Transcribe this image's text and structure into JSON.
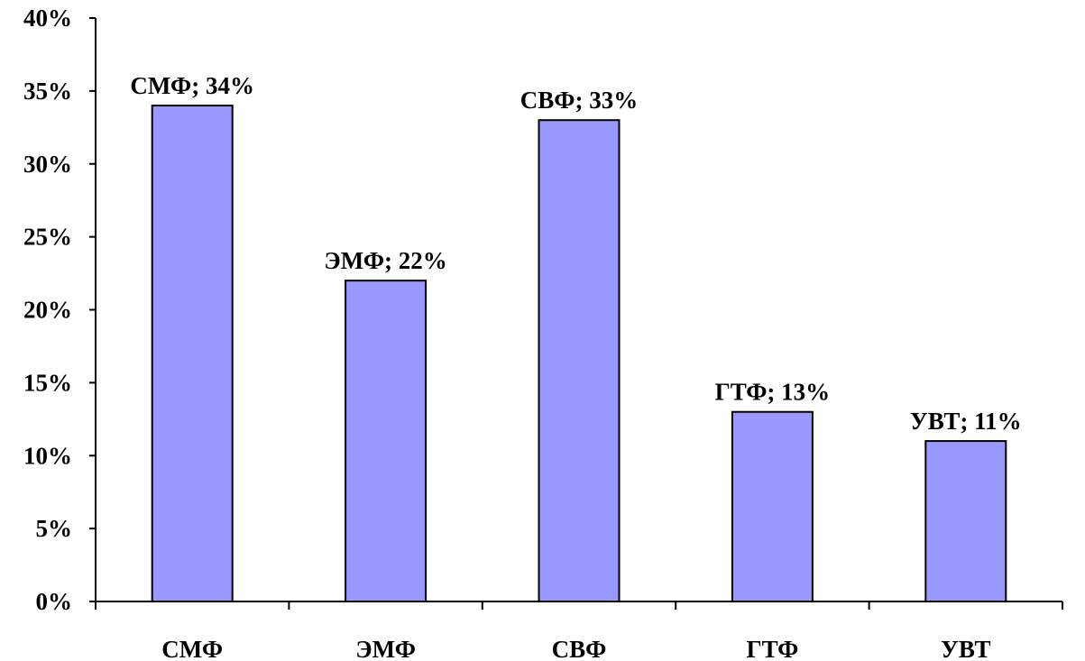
{
  "chart_data": {
    "type": "bar",
    "categories": [
      "СМФ",
      "ЭМФ",
      "СВФ",
      "ГТФ",
      "УВТ"
    ],
    "values": [
      34,
      22,
      33,
      13,
      11
    ],
    "data_labels": [
      "СМФ; 34%",
      "ЭМФ; 22%",
      "СВФ; 33%",
      "ГТФ; 13%",
      "УВТ; 11%"
    ],
    "y_ticks": [
      "0%",
      "5%",
      "10%",
      "15%",
      "20%",
      "25%",
      "30%",
      "35%",
      "40%"
    ],
    "ylim": [
      0,
      40
    ],
    "y_step": 5,
    "grid": false,
    "legend": "none",
    "bar_color": "#9999ff",
    "title": "",
    "xlabel": "",
    "ylabel": ""
  }
}
